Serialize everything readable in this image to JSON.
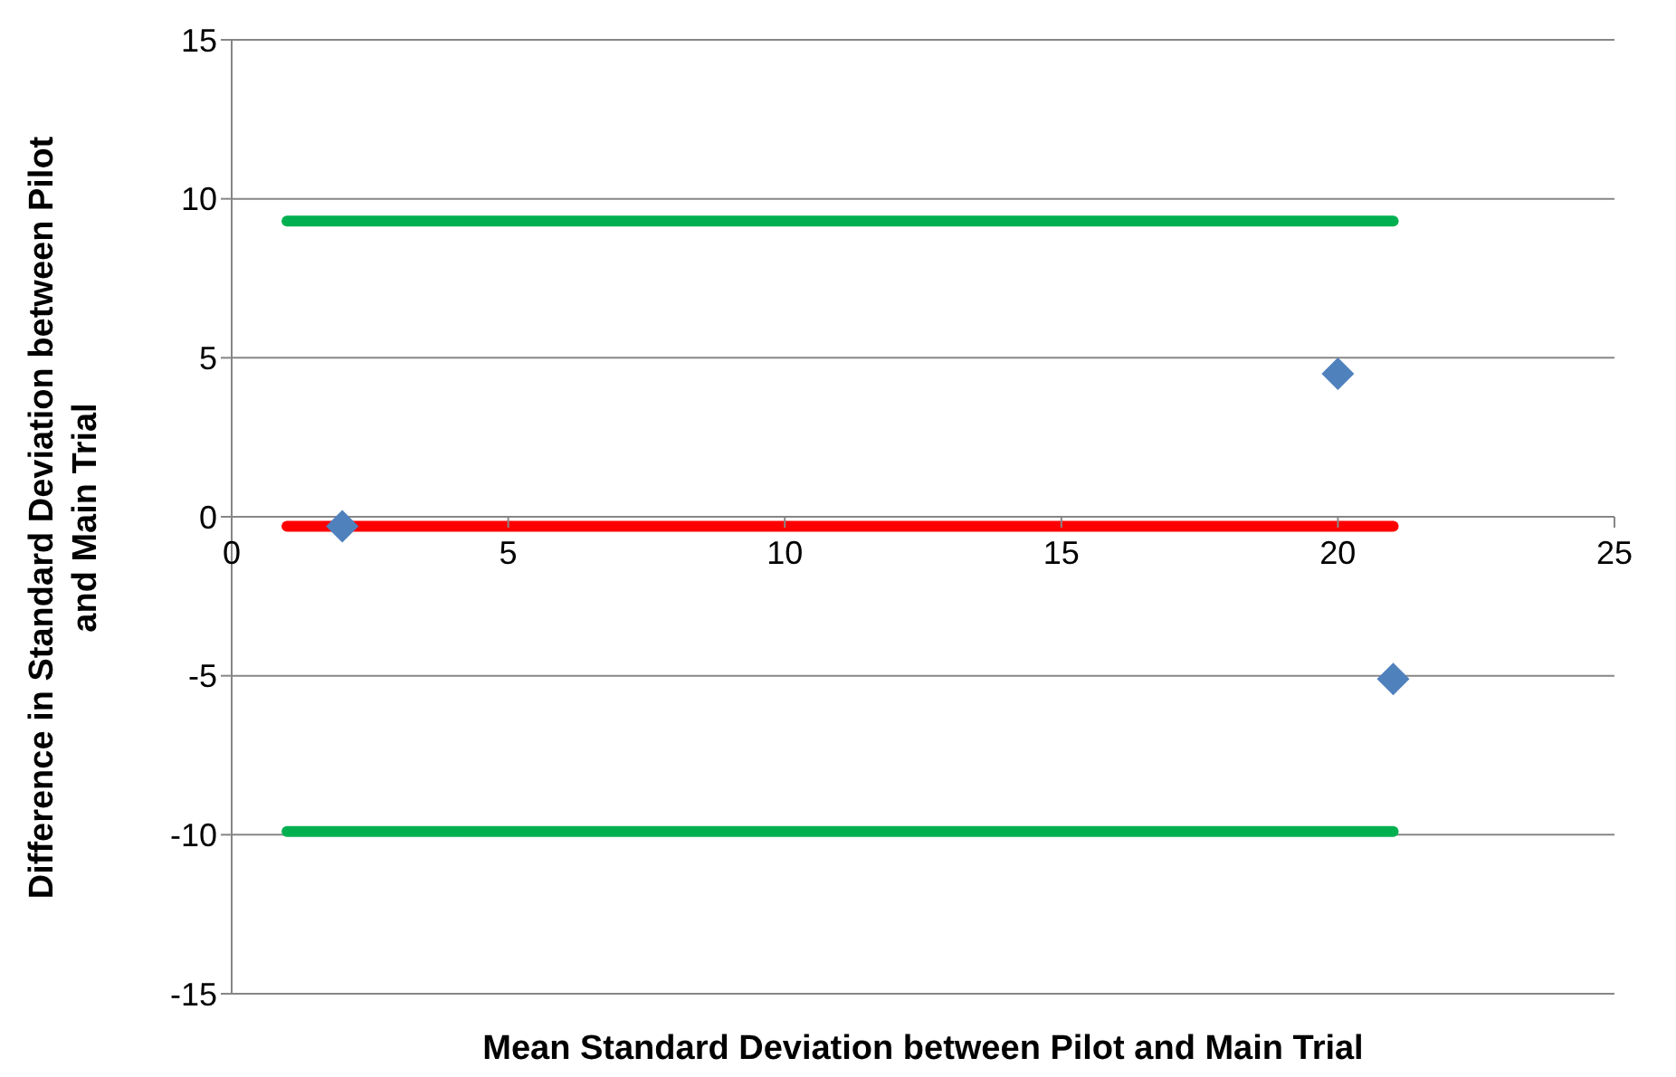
{
  "chart_data": {
    "type": "scatter",
    "xlabel": "Mean Standard Deviation between Pilot and Main Trial",
    "ylabel": "Difference in Standard Deviation between Pilot and Main Trial",
    "series": [
      {
        "color": "#4f81bd",
        "marker": "diamond",
        "x": [
          2,
          20,
          21
        ],
        "values": [
          -0.3,
          4.5,
          -5.1
        ]
      },
      {
        "type": "line",
        "color": "#00b050",
        "marker": "none",
        "x": [
          1,
          21
        ],
        "values": [
          9.3,
          9.3
        ]
      },
      {
        "type": "line",
        "color": "#ff0000",
        "marker": "none",
        "x": [
          1,
          21
        ],
        "values": [
          -0.3,
          -0.3
        ]
      },
      {
        "type": "line",
        "color": "#00b050",
        "marker": "none",
        "x": [
          1,
          21
        ],
        "values": [
          -9.9,
          -9.9
        ]
      }
    ],
    "xlim": [
      0,
      25
    ],
    "xticks": [
      0,
      5,
      10,
      15,
      20,
      25
    ],
    "ylim": [
      -15,
      15
    ],
    "yticks": [
      -15,
      -10,
      -5,
      0,
      5,
      10,
      15
    ],
    "grid": "y",
    "legend": false
  }
}
